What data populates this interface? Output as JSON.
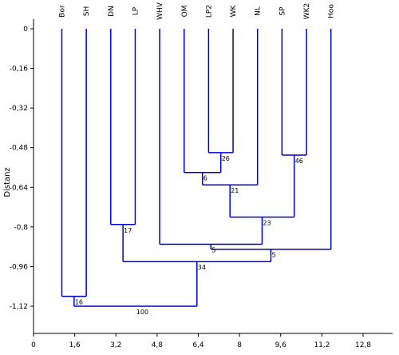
{
  "chart_data": {
    "type": "dendrogram",
    "ylabel": "Distanz",
    "xlim": [
      0,
      12.8
    ],
    "ylim": [
      0,
      -1.28
    ],
    "xticks": [
      "0",
      "1,6",
      "3,2",
      "4,8",
      "6,4",
      "8",
      "9,6",
      "11,2",
      "12,8"
    ],
    "xtick_values": [
      0,
      1.6,
      3.2,
      4.8,
      6.4,
      8,
      9.6,
      11.2,
      12.8
    ],
    "yticks": [
      "0",
      "-0,16",
      "-0,32",
      "-0,48",
      "-0,64",
      "-0,8",
      "-0,96",
      "-1,12"
    ],
    "ytick_values": [
      0,
      -0.16,
      -0.32,
      -0.48,
      -0.64,
      -0.8,
      -0.96,
      -1.12
    ],
    "line_color": "#0000cc",
    "leaves": [
      {
        "name": "Bor",
        "x": 1.1
      },
      {
        "name": "SH",
        "x": 2.05
      },
      {
        "name": "DN",
        "x": 3.0
      },
      {
        "name": "LP",
        "x": 3.95
      },
      {
        "name": "WHV",
        "x": 4.9
      },
      {
        "name": "OM",
        "x": 5.85
      },
      {
        "name": "LP2",
        "x": 6.8
      },
      {
        "name": "WK",
        "x": 7.75
      },
      {
        "name": "NL",
        "x": 8.7
      },
      {
        "name": "SP",
        "x": 9.65
      },
      {
        "name": "WK2",
        "x": 10.6
      },
      {
        "name": "Hoo",
        "x": 11.55
      }
    ],
    "merges": [
      {
        "id": "n_lp2_wk",
        "children": [
          "LP2",
          "WK"
        ],
        "height": -0.5,
        "support": "26"
      },
      {
        "id": "n_om",
        "children": [
          "OM",
          "n_lp2_wk"
        ],
        "height": -0.58,
        "support": "6"
      },
      {
        "id": "n_nl",
        "children": [
          "n_om",
          "NL"
        ],
        "height": -0.63,
        "support": "21"
      },
      {
        "id": "n_sp_wk2",
        "children": [
          "SP",
          "WK2"
        ],
        "height": -0.51,
        "support": "46"
      },
      {
        "id": "n_23",
        "children": [
          "n_nl",
          "n_sp_wk2"
        ],
        "height": -0.76,
        "support": "23"
      },
      {
        "id": "n_whv",
        "children": [
          "WHV",
          "n_23"
        ],
        "height": -0.87,
        "support": "5"
      },
      {
        "id": "n_hoo",
        "children": [
          "n_whv",
          "Hoo"
        ],
        "height": -0.89,
        "support": "5"
      },
      {
        "id": "n_dn_lp",
        "children": [
          "DN",
          "LP"
        ],
        "height": -0.79,
        "support": "17"
      },
      {
        "id": "n_34",
        "children": [
          "n_dn_lp",
          "n_hoo"
        ],
        "height": -0.94,
        "support": "34"
      },
      {
        "id": "n_bor_sh",
        "children": [
          "Bor",
          "SH"
        ],
        "height": -1.08,
        "support": "16"
      },
      {
        "id": "n_root",
        "children": [
          "n_bor_sh",
          "n_34"
        ],
        "height": -1.12,
        "support": "100"
      }
    ]
  }
}
